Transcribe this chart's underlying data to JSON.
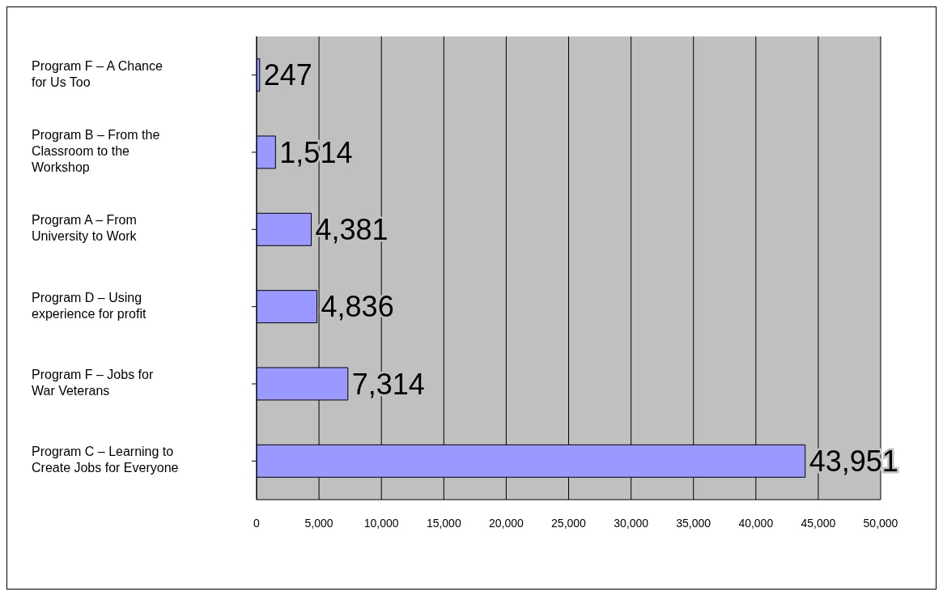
{
  "chart_data": {
    "type": "bar",
    "orientation": "horizontal",
    "categories": [
      "Program F –  A Chance for Us Too",
      "Program B –  From the Classroom to the Workshop",
      "Program A – From University to Work",
      "Program D – Using experience for profit",
      "Program F –  Jobs for War Veterans",
      "Program C –  Learning to Create Jobs for Everyone"
    ],
    "values": [
      247,
      1514,
      4381,
      4836,
      7314,
      43951
    ],
    "color": "#9999ff",
    "value_labels": [
      "247",
      "1,514",
      "4,381",
      "4,836",
      "7,314",
      "43,951"
    ],
    "xlim": [
      0,
      50000
    ],
    "xticks": [
      0,
      {
        "value": 5000,
        "label": "5,000"
      },
      {
        "value": 10000,
        "label": "10,000"
      },
      {
        "value": 15000,
        "label": "15,000"
      },
      {
        "value": 20000,
        "label": "20,000"
      },
      {
        "value": 25000,
        "label": "25,000"
      },
      {
        "value": 30000,
        "label": "30,000"
      },
      {
        "value": 35000,
        "label": "35,000"
      },
      {
        "value": 40000,
        "label": "40,000"
      },
      {
        "value": 45000,
        "label": "45,000"
      },
      {
        "value": 50000,
        "label": "50,000"
      }
    ],
    "grid": "x",
    "legend": false
  }
}
